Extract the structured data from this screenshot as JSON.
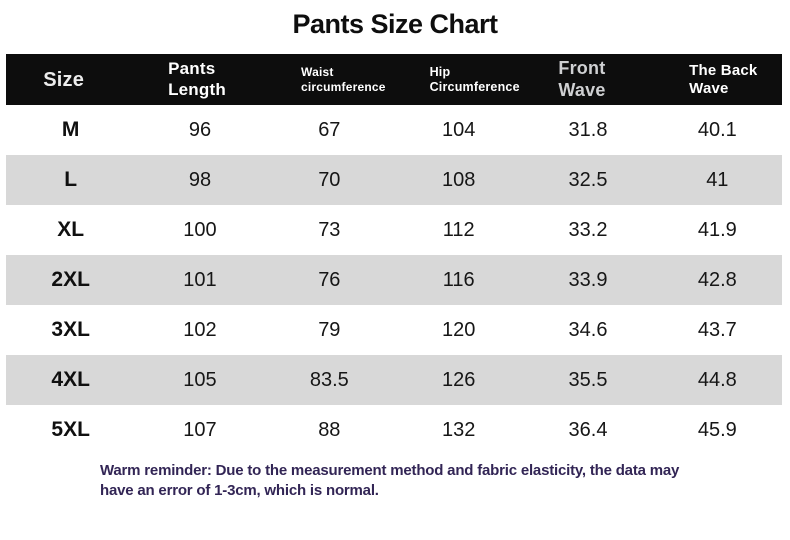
{
  "title": "Pants Size Chart",
  "footnote": "Warm reminder: Due to the measurement method and fabric elasticity, the data may have an error of 1-3cm, which is normal.",
  "colors": {
    "header_bg": "#0d0d0d",
    "header_text": "#ffffff",
    "row_alt_bg": "#d8d8d8",
    "footnote_text": "#322555",
    "title_text": "#0e0e0e"
  },
  "table": {
    "header_lines": [
      [
        "Size"
      ],
      [
        "Pants",
        "Length"
      ],
      [
        "Waist",
        "circumference"
      ],
      [
        "Hip",
        "Circumference"
      ],
      [
        "Front",
        "Wave"
      ],
      [
        "The Back",
        "Wave"
      ]
    ]
  },
  "chart_data": {
    "type": "table",
    "title": "Pants Size Chart",
    "columns": [
      "Size",
      "Pants Length",
      "Waist circumference",
      "Hip Circumference",
      "Front Wave",
      "The Back Wave"
    ],
    "rows": [
      [
        "M",
        96,
        67,
        104,
        31.8,
        40.1
      ],
      [
        "L",
        98,
        70,
        108,
        32.5,
        41
      ],
      [
        "XL",
        100,
        73,
        112,
        33.2,
        41.9
      ],
      [
        "2XL",
        101,
        76,
        116,
        33.9,
        42.8
      ],
      [
        "3XL",
        102,
        79,
        120,
        34.6,
        43.7
      ],
      [
        "4XL",
        105,
        83.5,
        126,
        35.5,
        44.8
      ],
      [
        "5XL",
        107,
        88,
        132,
        36.4,
        45.9
      ]
    ],
    "note": "Warm reminder: Due to the measurement method and fabric elasticity, the data may have an error of 1-3cm, which is normal.",
    "layout": {
      "alternating_row_shading": true,
      "header_style": "black-bar"
    }
  }
}
